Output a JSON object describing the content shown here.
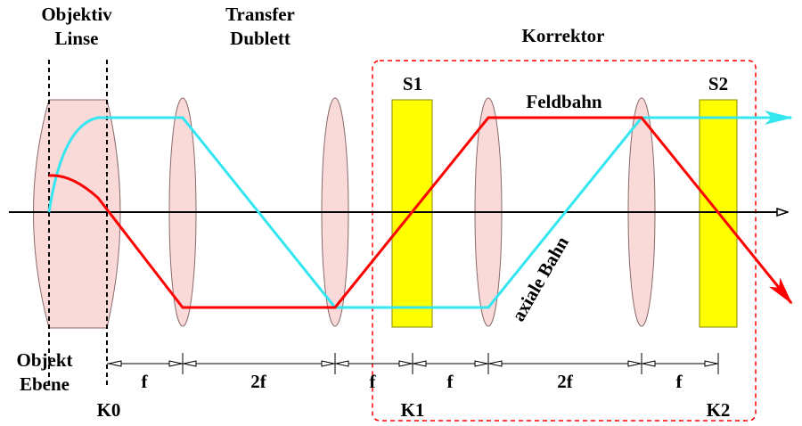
{
  "header": {
    "objective": [
      "Objektiv",
      "Linse"
    ],
    "transfer": [
      "Transfer",
      "Dublett"
    ],
    "corrector": "Korrektor"
  },
  "elements": {
    "s1": "S1",
    "s2": "S2"
  },
  "rays": {
    "field": "Feldbahn",
    "axial": "axiale Bahn"
  },
  "object_plane": [
    "Objekt",
    "Ebene"
  ],
  "planes": [
    "K0",
    "K1",
    "K2"
  ],
  "dimensions": [
    "f",
    "2f",
    "f",
    "f",
    "2f",
    "f"
  ]
}
